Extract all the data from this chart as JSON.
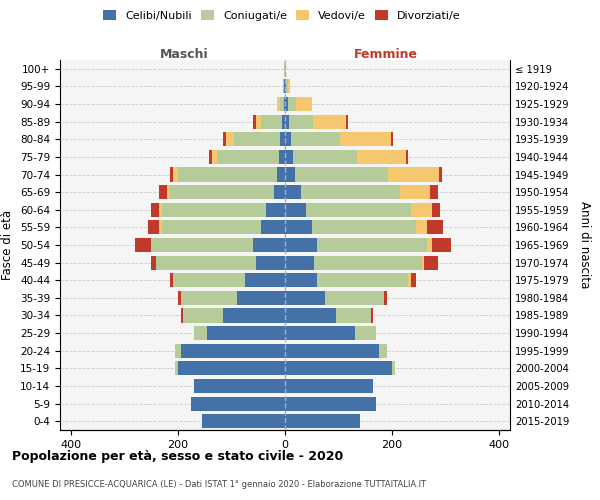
{
  "age_groups": [
    "0-4",
    "5-9",
    "10-14",
    "15-19",
    "20-24",
    "25-29",
    "30-34",
    "35-39",
    "40-44",
    "45-49",
    "50-54",
    "55-59",
    "60-64",
    "65-69",
    "70-74",
    "75-79",
    "80-84",
    "85-89",
    "90-94",
    "95-99",
    "100+"
  ],
  "birth_years": [
    "2015-2019",
    "2010-2014",
    "2005-2009",
    "2000-2004",
    "1995-1999",
    "1990-1994",
    "1985-1989",
    "1980-1984",
    "1975-1979",
    "1970-1974",
    "1965-1969",
    "1960-1964",
    "1955-1959",
    "1950-1954",
    "1945-1949",
    "1940-1944",
    "1935-1939",
    "1930-1934",
    "1925-1929",
    "1920-1924",
    "≤ 1919"
  ],
  "males_celibi": [
    155,
    175,
    170,
    200,
    195,
    145,
    115,
    90,
    75,
    55,
    60,
    45,
    35,
    20,
    15,
    12,
    10,
    5,
    2,
    1,
    0
  ],
  "males_coniugati": [
    0,
    0,
    0,
    5,
    10,
    25,
    75,
    105,
    135,
    185,
    190,
    185,
    195,
    195,
    185,
    115,
    85,
    40,
    8,
    2,
    1
  ],
  "males_vedovi": [
    0,
    0,
    0,
    0,
    0,
    0,
    0,
    0,
    0,
    0,
    0,
    5,
    5,
    5,
    10,
    10,
    15,
    10,
    5,
    0,
    0
  ],
  "males_divorziati": [
    0,
    0,
    0,
    0,
    0,
    0,
    5,
    5,
    5,
    10,
    30,
    20,
    15,
    15,
    5,
    5,
    5,
    5,
    0,
    0,
    0
  ],
  "females_nubili": [
    140,
    170,
    165,
    200,
    175,
    130,
    95,
    75,
    60,
    55,
    60,
    50,
    40,
    30,
    18,
    15,
    12,
    8,
    5,
    2,
    0
  ],
  "females_coniugate": [
    0,
    0,
    0,
    5,
    15,
    40,
    65,
    110,
    170,
    200,
    205,
    195,
    195,
    185,
    175,
    120,
    90,
    45,
    15,
    3,
    0
  ],
  "females_vedove": [
    0,
    0,
    0,
    0,
    0,
    0,
    0,
    0,
    5,
    5,
    10,
    20,
    40,
    55,
    95,
    90,
    95,
    60,
    30,
    5,
    1
  ],
  "females_divorziate": [
    0,
    0,
    0,
    0,
    0,
    0,
    5,
    5,
    10,
    25,
    35,
    30,
    15,
    15,
    5,
    5,
    5,
    5,
    0,
    0,
    0
  ],
  "colors_celibi": "#4472a8",
  "colors_coniugati": "#b5cb99",
  "colors_vedovi": "#f5c76e",
  "colors_divorziati": "#c0392b",
  "xlim": 420,
  "title": "Popolazione per età, sesso e stato civile - 2020",
  "subtitle": "COMUNE DI PRESICCE-ACQUARICA (LE) - Dati ISTAT 1° gennaio 2020 - Elaborazione TUTTAITALIA.IT",
  "legend_labels": [
    "Celibi/Nubili",
    "Coniugati/e",
    "Vedovi/e",
    "Divorziati/e"
  ],
  "ylabel_left": "Fasce di età",
  "ylabel_right": "Anni di nascita",
  "label_maschi": "Maschi",
  "label_femmine": "Femmine",
  "maschi_color": "#555555",
  "femmine_color": "#c0392b"
}
